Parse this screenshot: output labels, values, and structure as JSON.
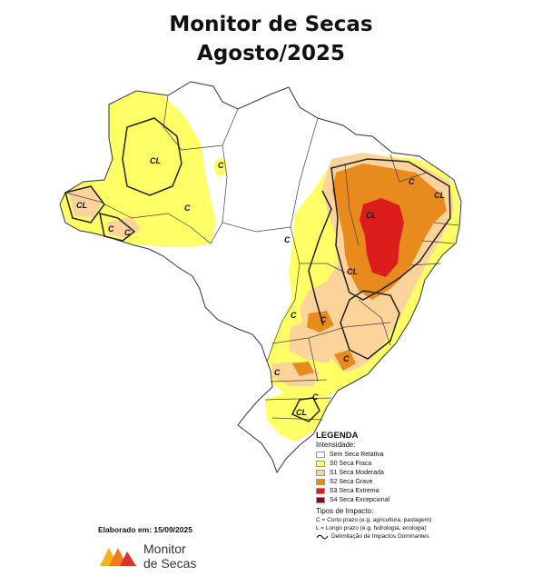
{
  "title": {
    "line1": "Monitor de Secas",
    "line2": "Agosto/2025"
  },
  "legend": {
    "heading": "LEGENDA",
    "intensity_heading": "Intensidade:",
    "intensity": [
      {
        "label": "Sem Seca Relativa",
        "color": "#ffffff"
      },
      {
        "label": "S0 Seca Fraca",
        "color": "#ffff66"
      },
      {
        "label": "S1 Seca Moderada",
        "color": "#fbd39b"
      },
      {
        "label": "S2 Seca Grave",
        "color": "#e98a1c"
      },
      {
        "label": "S3 Seca Extrema",
        "color": "#dd1c1c"
      },
      {
        "label": "S4 Seca Excepcional",
        "color": "#7a1010"
      }
    ],
    "impact_heading": "Tipos de Impacto:",
    "impact_c": "C = Curto prazo (e.g. agricultura, pastagem)",
    "impact_l": "L = Longo prazo (e.g. hidrologia, ecologia)",
    "impact_line": "Delimitação de Impactos Dominantes"
  },
  "map_labels": {
    "cl1": "CL",
    "cl2": "CL",
    "c1": "C",
    "c2": "C",
    "c3": "C",
    "c4": "C",
    "c5": "C",
    "cl3": "CL",
    "cl4": "CL",
    "c6": "C",
    "cl5": "CL",
    "c7": "C",
    "c8": "C",
    "c9": "C",
    "c10": "C",
    "cl6": "CL",
    "c11": "C"
  },
  "footer": {
    "elaborado": "Elaborado em: 15/09/2025",
    "brand_line1": "Monitor",
    "brand_line2": "de Secas"
  },
  "colors": {
    "s0": "#ffff66",
    "s1": "#fbd39b",
    "s2": "#e98a1c",
    "s3": "#dd1c1c",
    "s4": "#7a1010",
    "brand_yellow": "#f6b21b",
    "brand_orange": "#ee7d1f",
    "brand_red": "#d9342b"
  }
}
